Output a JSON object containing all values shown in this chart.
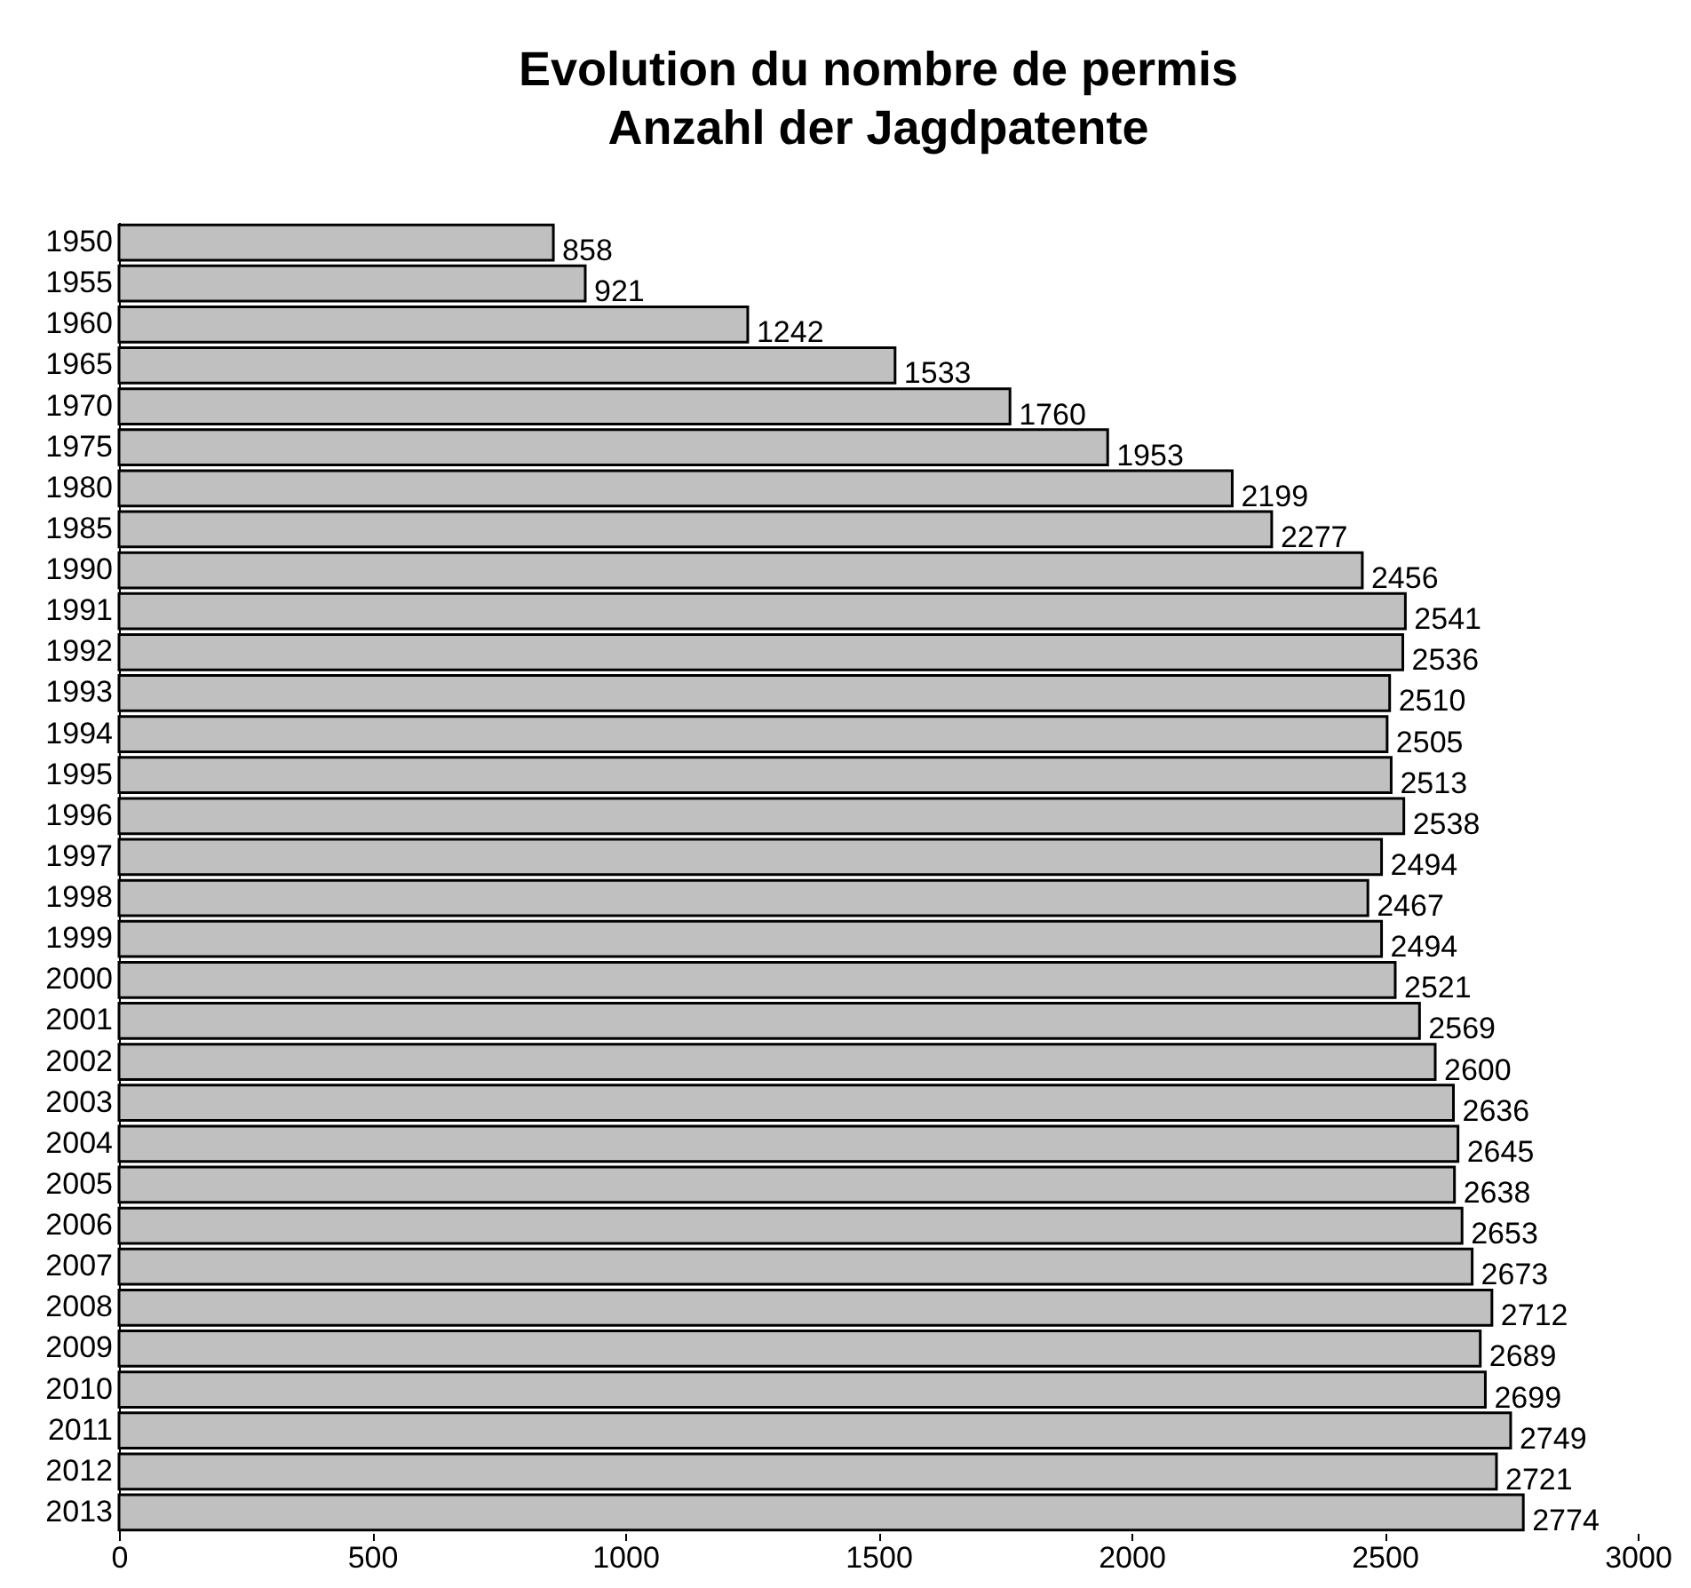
{
  "chart_data": {
    "type": "bar",
    "orientation": "horizontal",
    "title": "Evolution du nombre de permis",
    "subtitle": "Anzahl der Jagdpatente",
    "categories": [
      "1950",
      "1955",
      "1960",
      "1965",
      "1970",
      "1975",
      "1980",
      "1985",
      "1990",
      "1991",
      "1992",
      "1993",
      "1994",
      "1995",
      "1996",
      "1997",
      "1998",
      "1999",
      "2000",
      "2001",
      "2002",
      "2003",
      "2004",
      "2005",
      "2006",
      "2007",
      "2008",
      "2009",
      "2010",
      "2011",
      "2012",
      "2013"
    ],
    "values": [
      858,
      921,
      1242,
      1533,
      1760,
      1953,
      2199,
      2277,
      2456,
      2541,
      2536,
      2510,
      2505,
      2513,
      2538,
      2494,
      2467,
      2494,
      2521,
      2569,
      2600,
      2636,
      2645,
      2638,
      2653,
      2673,
      2712,
      2689,
      2699,
      2749,
      2721,
      2774
    ],
    "color": "#c0c0c0",
    "xlim": [
      0,
      3000
    ],
    "xticks": [
      0,
      500,
      1000,
      1500,
      2000,
      2500,
      3000
    ],
    "grid": false,
    "data_labels": true
  }
}
